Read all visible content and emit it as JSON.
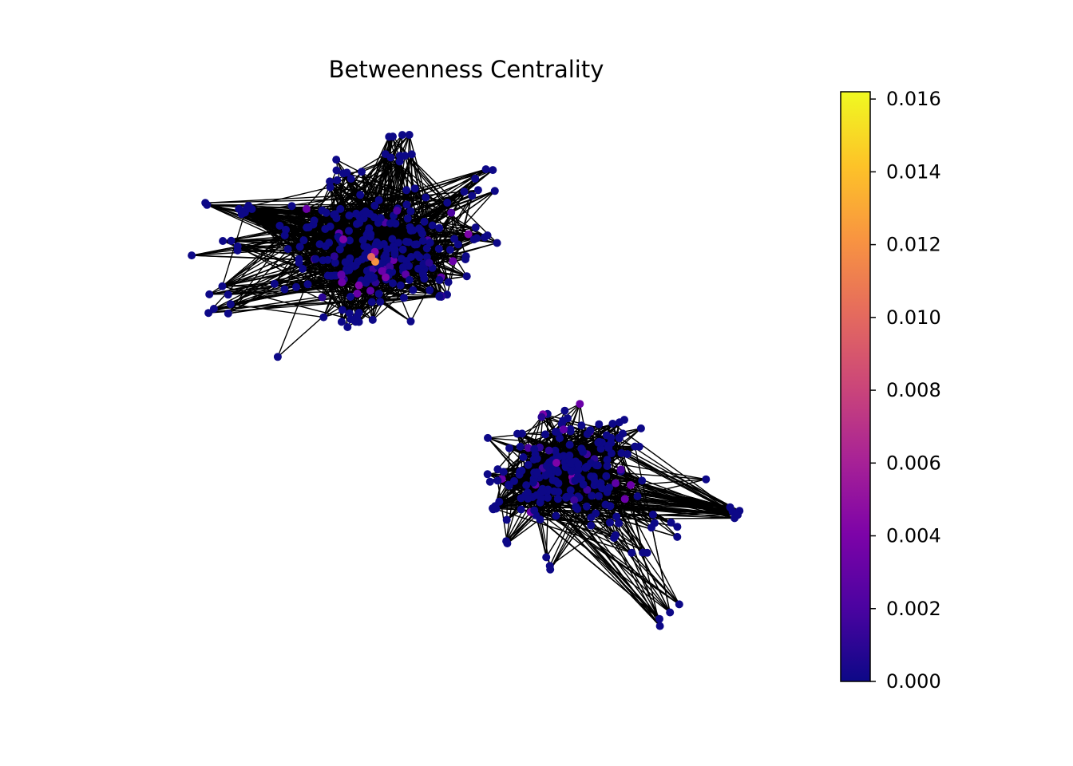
{
  "title": "Betweenness Centrality",
  "colorbar": {
    "colormap": "plasma",
    "min": 0.0,
    "max": 0.0162,
    "ticks": [
      "0.000",
      "0.002",
      "0.004",
      "0.006",
      "0.008",
      "0.010",
      "0.012",
      "0.014",
      "0.016"
    ],
    "tick_values": [
      0.0,
      0.002,
      0.004,
      0.006,
      0.008,
      0.01,
      0.012,
      0.014,
      0.016
    ]
  },
  "colors": {
    "edge": "#000000",
    "low": "#0d0887",
    "high": "#f0f921"
  },
  "graph": {
    "components": 2,
    "node_color_metric": "betweenness centrality",
    "max_node_value": 0.015
  }
}
